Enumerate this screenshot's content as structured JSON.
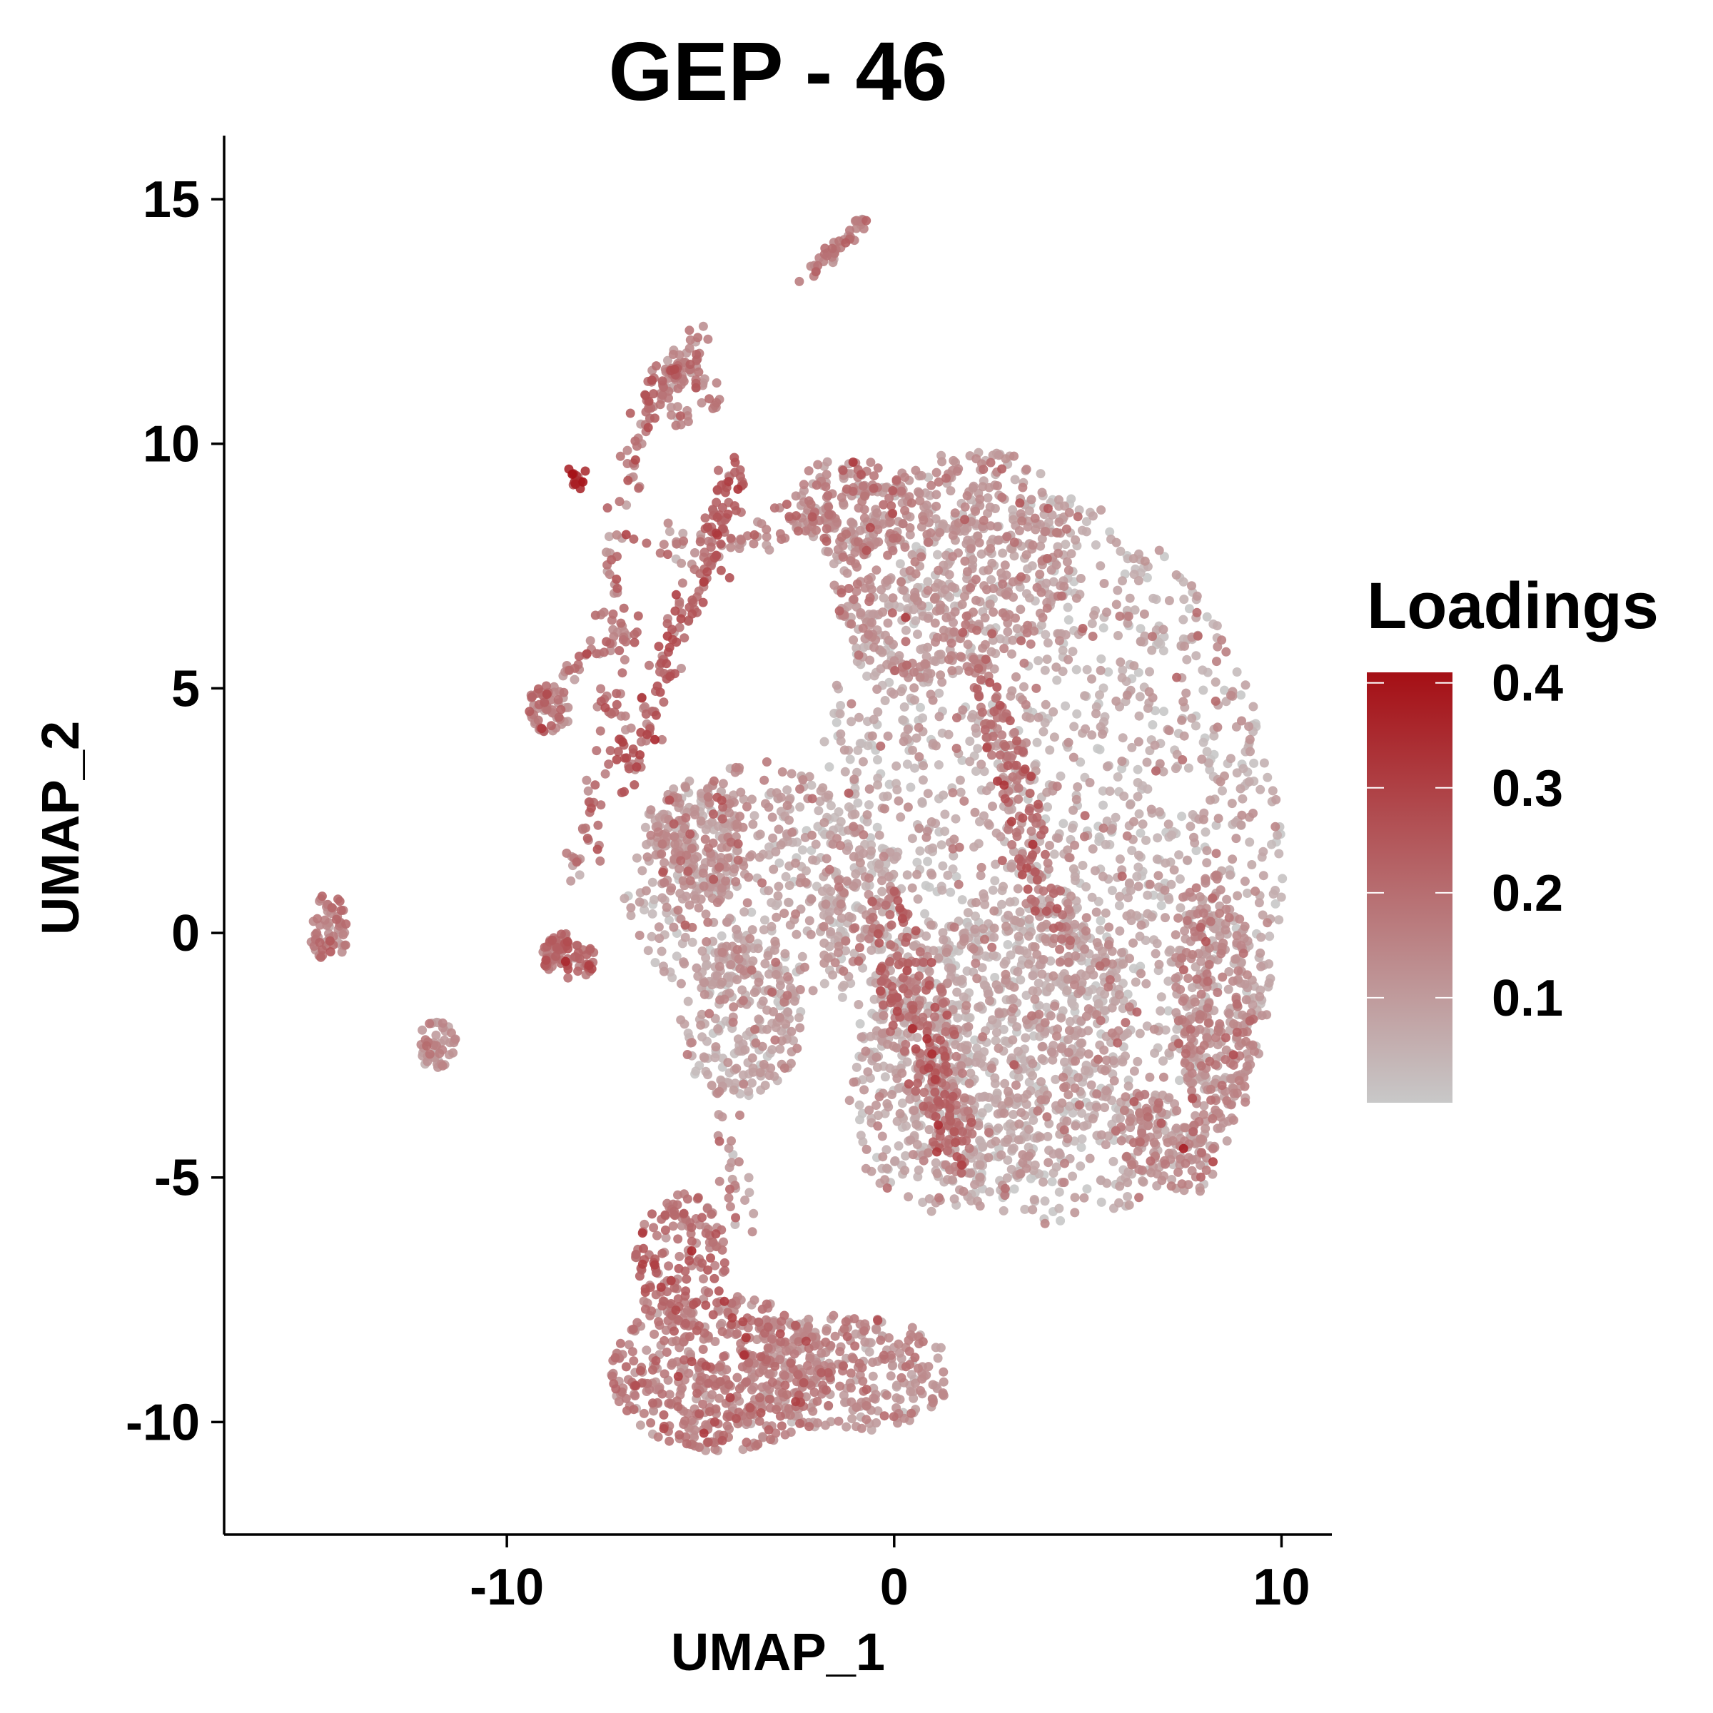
{
  "chart_data": {
    "type": "scatter",
    "title": "GEP - 46",
    "xlabel": "UMAP_1",
    "ylabel": "UMAP_2",
    "xlim": [
      -17.3,
      11.3
    ],
    "ylim": [
      -12.3,
      16.3
    ],
    "x_ticks": [
      -10,
      0,
      10
    ],
    "y_ticks": [
      -10,
      -5,
      0,
      5,
      10,
      15
    ],
    "x_tick_labels": [
      "-10",
      "0",
      "10"
    ],
    "y_tick_labels": [
      "-10",
      "-5",
      "0",
      "5",
      "10",
      "15"
    ],
    "grid": false,
    "legend": {
      "title": "Loadings",
      "placement": "right",
      "range": [
        0.0,
        0.41
      ],
      "ticks": [
        0.1,
        0.2,
        0.3,
        0.4
      ],
      "tick_labels": [
        "0.1",
        "0.2",
        "0.3",
        "0.4"
      ],
      "color_low": "#c8c8c8",
      "color_high": "#a50f15"
    },
    "clusters": [
      {
        "cx": 4.0,
        "cy": 1.5,
        "rx": 6.0,
        "ry": 7.5,
        "rot": 0.15,
        "n": 1800,
        "load": 0.06
      },
      {
        "cx": 2.5,
        "cy": -2.5,
        "rx": 4.0,
        "ry": 2.8,
        "rot": 0.6,
        "n": 700,
        "load": 0.07
      },
      {
        "cx": 0.7,
        "cy": -2.0,
        "rx": 0.8,
        "ry": 3.2,
        "rot": 0.35,
        "n": 220,
        "load": 0.2
      },
      {
        "cx": 3.3,
        "cy": 2.5,
        "rx": 0.5,
        "ry": 3.5,
        "rot": 0.35,
        "n": 160,
        "load": 0.18
      },
      {
        "cx": 1.5,
        "cy": 7.5,
        "rx": 3.2,
        "ry": 2.3,
        "rot": 0.3,
        "n": 500,
        "load": 0.11
      },
      {
        "cx": -1.2,
        "cy": 8.7,
        "rx": 1.6,
        "ry": 1.0,
        "rot": 0.0,
        "n": 140,
        "load": 0.13
      },
      {
        "cx": -3.5,
        "cy": 1.0,
        "rx": 3.5,
        "ry": 2.5,
        "rot": 0.0,
        "n": 500,
        "load": 0.08
      },
      {
        "cx": -5.0,
        "cy": 1.8,
        "rx": 1.2,
        "ry": 1.3,
        "rot": 0.0,
        "n": 160,
        "load": 0.12
      },
      {
        "cx": -4.0,
        "cy": -1.8,
        "rx": 1.6,
        "ry": 1.6,
        "rot": 0.0,
        "n": 220,
        "load": 0.07
      },
      {
        "cx": 8.3,
        "cy": -1.5,
        "rx": 1.1,
        "ry": 2.8,
        "rot": 0.1,
        "n": 280,
        "load": 0.12
      },
      {
        "cx": 7.0,
        "cy": -4.3,
        "rx": 1.5,
        "ry": 0.9,
        "rot": -0.5,
        "n": 140,
        "load": 0.12
      },
      {
        "cx": -4.5,
        "cy": -9.0,
        "rx": 2.8,
        "ry": 1.6,
        "rot": 0.0,
        "n": 450,
        "load": 0.15
      },
      {
        "cx": -1.2,
        "cy": -9.0,
        "rx": 2.7,
        "ry": 1.2,
        "rot": 0.0,
        "n": 300,
        "load": 0.12
      },
      {
        "cx": -5.5,
        "cy": -6.8,
        "rx": 1.2,
        "ry": 1.5,
        "rot": 0.0,
        "n": 160,
        "load": 0.18
      },
      {
        "cx": -14.6,
        "cy": 0.1,
        "rx": 0.5,
        "ry": 0.7,
        "rot": 0.0,
        "n": 60,
        "load": 0.15
      },
      {
        "cx": -11.8,
        "cy": -2.3,
        "rx": 0.5,
        "ry": 0.5,
        "rot": 0.0,
        "n": 45,
        "load": 0.12
      },
      {
        "cx": -8.9,
        "cy": 4.6,
        "rx": 0.55,
        "ry": 0.55,
        "rot": 0.0,
        "n": 60,
        "load": 0.15
      },
      {
        "cx": -8.4,
        "cy": -0.5,
        "rx": 0.7,
        "ry": 0.5,
        "rot": 0.0,
        "n": 80,
        "load": 0.2
      },
      {
        "cx": -5.3,
        "cy": 11.0,
        "rx": 0.8,
        "ry": 0.7,
        "rot": 0.0,
        "n": 50,
        "load": 0.15
      },
      {
        "cx": -8.2,
        "cy": 9.3,
        "rx": 0.3,
        "ry": 0.25,
        "rot": 0.0,
        "n": 14,
        "load": 0.32
      }
    ],
    "strands": [
      {
        "points": [
          [
            -7.0,
            3.0
          ],
          [
            -6.2,
            4.8
          ],
          [
            -5.6,
            6.2
          ],
          [
            -4.8,
            7.5
          ],
          [
            -4.5,
            8.5
          ],
          [
            -4.0,
            9.5
          ]
        ],
        "n": 160,
        "spread": 0.22,
        "load": 0.22
      },
      {
        "points": [
          [
            -8.3,
            1.0
          ],
          [
            -7.7,
            3.0
          ],
          [
            -7.2,
            5.0
          ],
          [
            -7.3,
            7.5
          ],
          [
            -6.8,
            9.5
          ],
          [
            -6.3,
            10.8
          ],
          [
            -5.8,
            11.5
          ],
          [
            -4.9,
            12.1
          ]
        ],
        "n": 160,
        "spread": 0.18,
        "load": 0.18
      },
      {
        "points": [
          [
            -6.2,
            8.0
          ],
          [
            -4.5,
            7.8
          ],
          [
            -3.0,
            8.2
          ],
          [
            -2.0,
            8.6
          ],
          [
            -0.8,
            9.2
          ]
        ],
        "n": 80,
        "spread": 0.22,
        "load": 0.14
      },
      {
        "points": [
          [
            -8.6,
            5.2
          ],
          [
            -7.5,
            5.8
          ],
          [
            -6.6,
            6.2
          ]
        ],
        "n": 30,
        "spread": 0.15,
        "load": 0.16
      },
      {
        "points": [
          [
            -4.4,
            -3.5
          ],
          [
            -4.1,
            -5.0
          ],
          [
            -3.8,
            -6.0
          ]
        ],
        "n": 25,
        "spread": 0.2,
        "load": 0.12
      },
      {
        "points": [
          [
            -2.3,
            13.4
          ],
          [
            -1.4,
            14.1
          ],
          [
            -0.7,
            14.6
          ]
        ],
        "n": 40,
        "spread": 0.1,
        "load": 0.16
      }
    ]
  }
}
